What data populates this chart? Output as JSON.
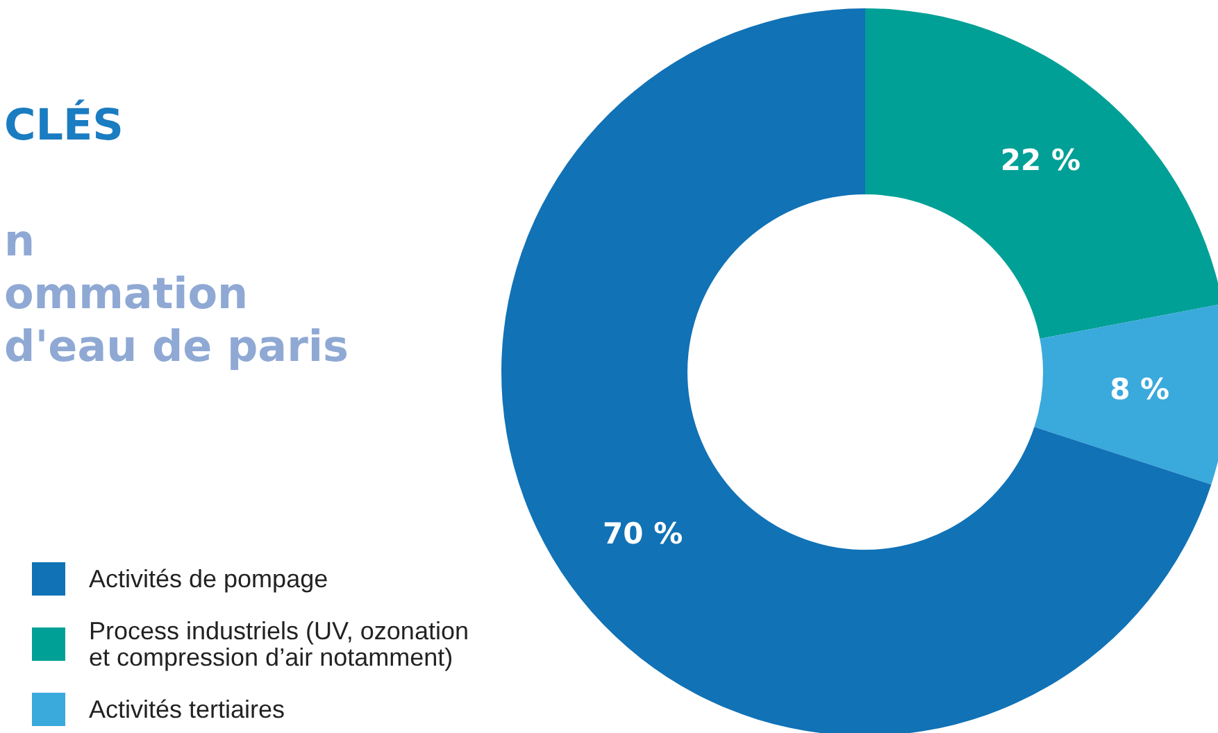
{
  "chart_data": {
    "type": "donut",
    "title": "CLÉS",
    "subtitle": "n\nommation\nd'eau de paris",
    "categories": [
      "Activités de pompage",
      "Process industriels (UV, ozonation\net compression d’air notamment)",
      "Activités tertiaires"
    ],
    "values": [
      70,
      22,
      8
    ],
    "colors": [
      "#1172b6",
      "#00a096",
      "#3aa9dc"
    ],
    "value_labels": [
      "70 %",
      "22 %",
      "8 %"
    ],
    "legend": "bottom left"
  }
}
